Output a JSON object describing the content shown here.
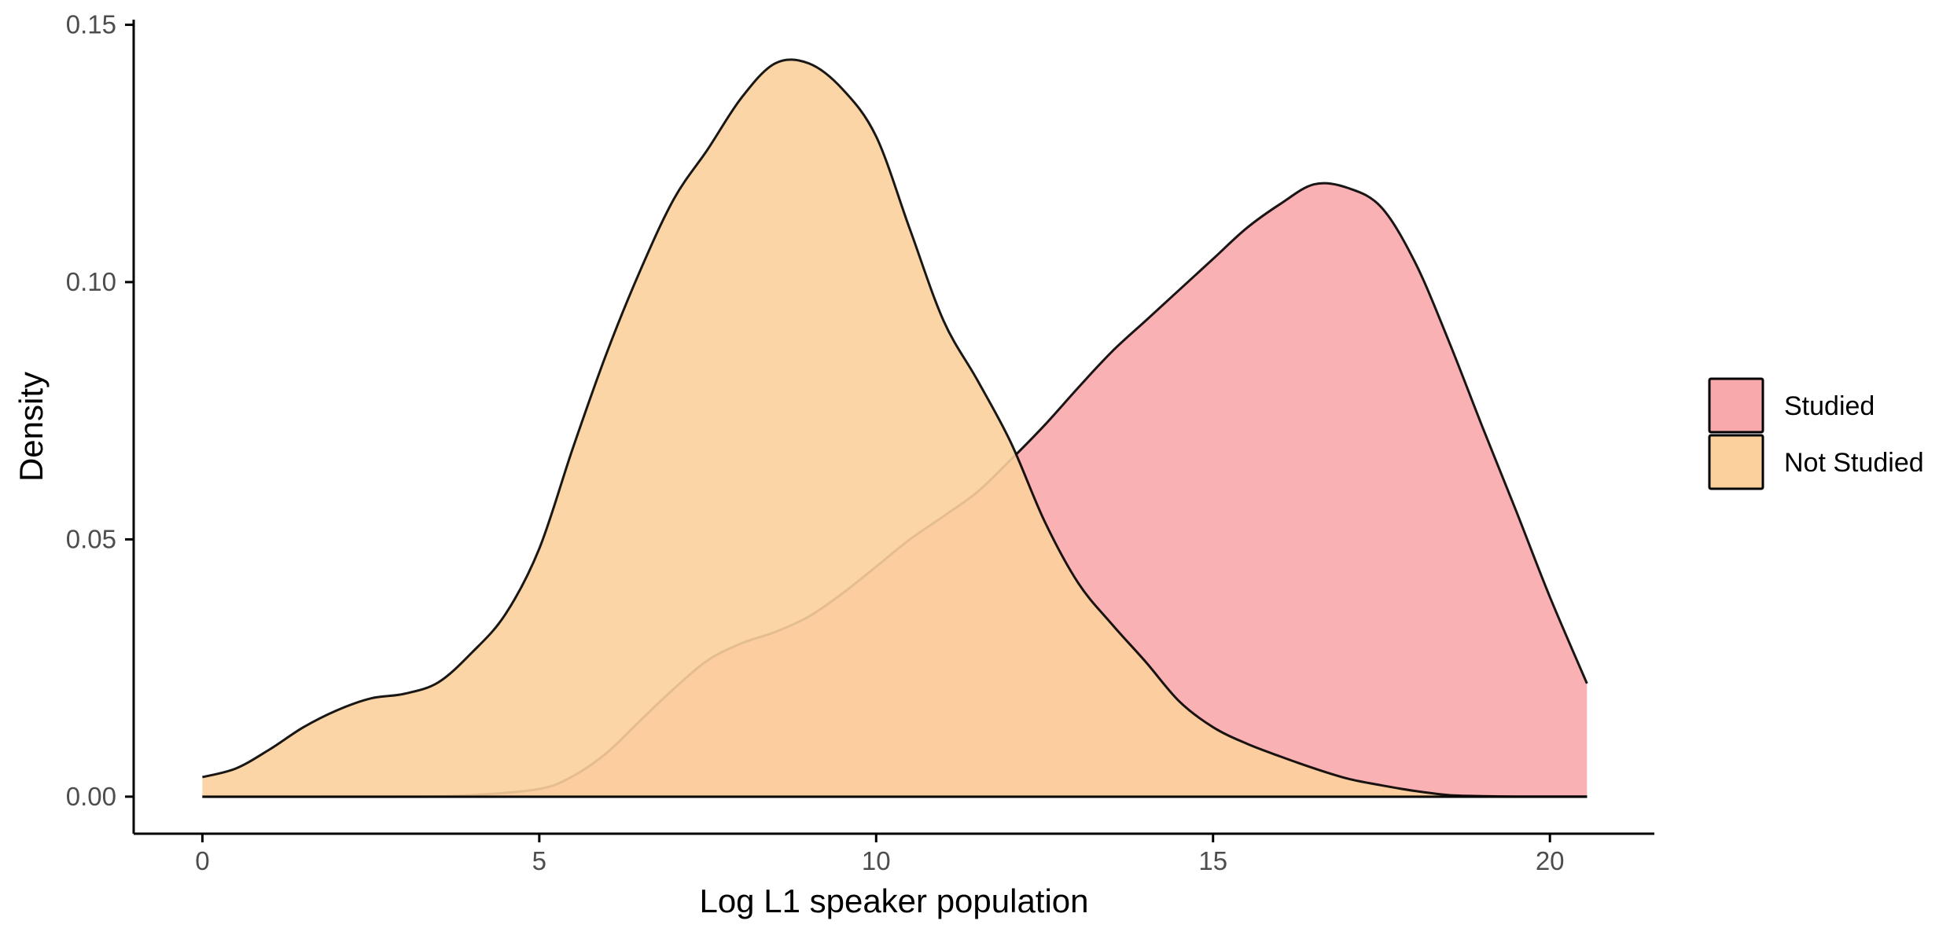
{
  "chart_data": {
    "type": "area",
    "title": "",
    "xlabel": "Log L1 speaker population",
    "ylabel": "Density",
    "xlim": [
      -1.02,
      21.55
    ],
    "ylim": [
      -0.0072,
      0.151
    ],
    "xticks": [
      0,
      5,
      10,
      15,
      20
    ],
    "xtick_labels": [
      "0",
      "5",
      "10",
      "15",
      "20"
    ],
    "yticks": [
      0,
      0.05,
      0.1,
      0.15
    ],
    "ytick_labels": [
      "0.00",
      "0.05",
      "0.10",
      "0.15"
    ],
    "grid": false,
    "legend": "right",
    "series": [
      {
        "name": "Studied",
        "color": "#f8a9ab",
        "x": [
          0,
          3,
          4,
          5,
          5.5,
          6,
          6.5,
          7,
          7.5,
          8,
          8.5,
          9,
          9.5,
          10,
          10.5,
          11,
          11.5,
          12,
          12.5,
          13,
          13.5,
          14,
          14.5,
          15,
          15.5,
          16,
          16.5,
          17,
          17.5,
          18,
          18.5,
          19,
          19.5,
          20,
          20.55
        ],
        "y": [
          0,
          0,
          0.0003,
          0.0015,
          0.004,
          0.0085,
          0.0148,
          0.021,
          0.0265,
          0.0298,
          0.032,
          0.035,
          0.0395,
          0.0447,
          0.05,
          0.0545,
          0.0592,
          0.0655,
          0.0722,
          0.0795,
          0.0865,
          0.0925,
          0.0985,
          0.1045,
          0.1105,
          0.1152,
          0.119,
          0.1183,
          0.1145,
          0.1038,
          0.0885,
          0.0718,
          0.0555,
          0.0388,
          0.022
        ]
      },
      {
        "name": "Not Studied",
        "color": "#fbd09c",
        "x": [
          0,
          0.5,
          1,
          1.5,
          2,
          2.5,
          3,
          3.5,
          4,
          4.5,
          5,
          5.5,
          6,
          6.5,
          7,
          7.5,
          8,
          8.5,
          9,
          9.5,
          10,
          10.5,
          11,
          11.5,
          12,
          12.5,
          13,
          13.5,
          14,
          14.5,
          15,
          15.5,
          16,
          16.5,
          17,
          17.5,
          18,
          18.5,
          19,
          19.5,
          20,
          20.55
        ],
        "y": [
          0.0038,
          0.0055,
          0.0092,
          0.0135,
          0.0168,
          0.0191,
          0.02,
          0.0222,
          0.028,
          0.0355,
          0.0482,
          0.0678,
          0.0862,
          0.1023,
          0.1162,
          0.1258,
          0.1358,
          0.1425,
          0.1425,
          0.1375,
          0.1283,
          0.1103,
          0.0925,
          0.081,
          0.0688,
          0.0535,
          0.0415,
          0.0335,
          0.0262,
          0.0185,
          0.0135,
          0.0103,
          0.0078,
          0.0055,
          0.0035,
          0.0022,
          0.0011,
          0.0003,
          0.0001,
          0,
          0,
          0
        ]
      }
    ]
  }
}
